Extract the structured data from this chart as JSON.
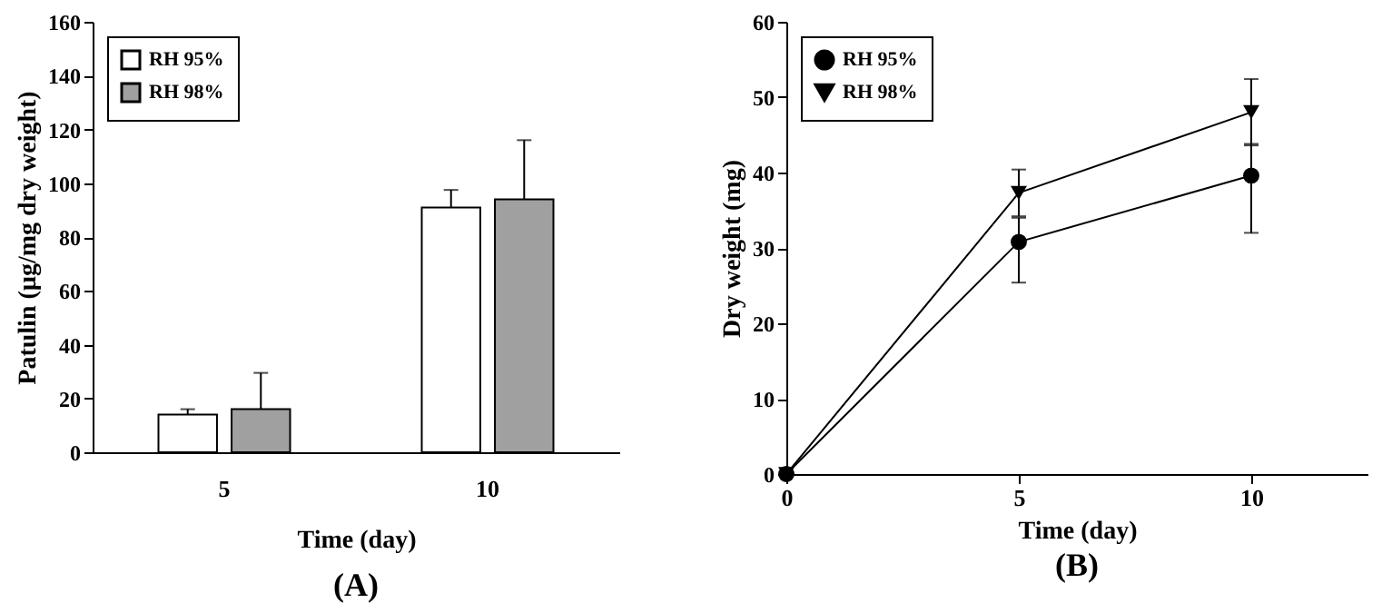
{
  "chart_data": [
    {
      "type": "bar",
      "ylabel": "Patulin (µg/mg dry weight)",
      "xlabel": "Time (day)",
      "categories": [
        "5",
        "10"
      ],
      "ylim": [
        0,
        160
      ],
      "yticks": [
        0,
        20,
        40,
        60,
        80,
        100,
        120,
        140,
        160
      ],
      "legend": "top left",
      "grid": false,
      "annotations": [
        "(A)"
      ],
      "series": [
        {
          "name": "RH 95%",
          "color": "#ffffff",
          "values": [
            14,
            91
          ],
          "errors": [
            [
              14,
              16
            ],
            [
              91,
              97.5
            ]
          ]
        },
        {
          "name": "RH 98%",
          "color": "#a0a0a0",
          "values": [
            16,
            94
          ],
          "errors": [
            [
              16,
              29.5
            ],
            [
              94,
              116
            ]
          ]
        }
      ]
    },
    {
      "type": "line",
      "ylabel": "Dry weight (mg)",
      "xlabel": "Time (day)",
      "x": [
        0,
        5,
        10
      ],
      "xlim": [
        0,
        12.5
      ],
      "xticks": [
        0,
        5,
        10
      ],
      "ylim": [
        0,
        60
      ],
      "yticks": [
        0,
        10,
        20,
        30,
        40,
        50,
        60
      ],
      "legend": "top left",
      "grid": false,
      "annotations": [
        "(B)"
      ],
      "series": [
        {
          "name": "RH 95%",
          "color": "#000000",
          "marker": "circle",
          "values": [
            0,
            30.8,
            39.6
          ],
          "errors": [
            null,
            [
              25.4,
              34
            ],
            [
              32,
              43.8
            ]
          ]
        },
        {
          "name": "RH 98%",
          "color": "#000000",
          "marker": "triangle",
          "values": [
            0,
            37.3,
            48
          ],
          "errors": [
            null,
            [
              34.2,
              40.4
            ],
            [
              43.6,
              52.4
            ]
          ]
        }
      ]
    }
  ]
}
